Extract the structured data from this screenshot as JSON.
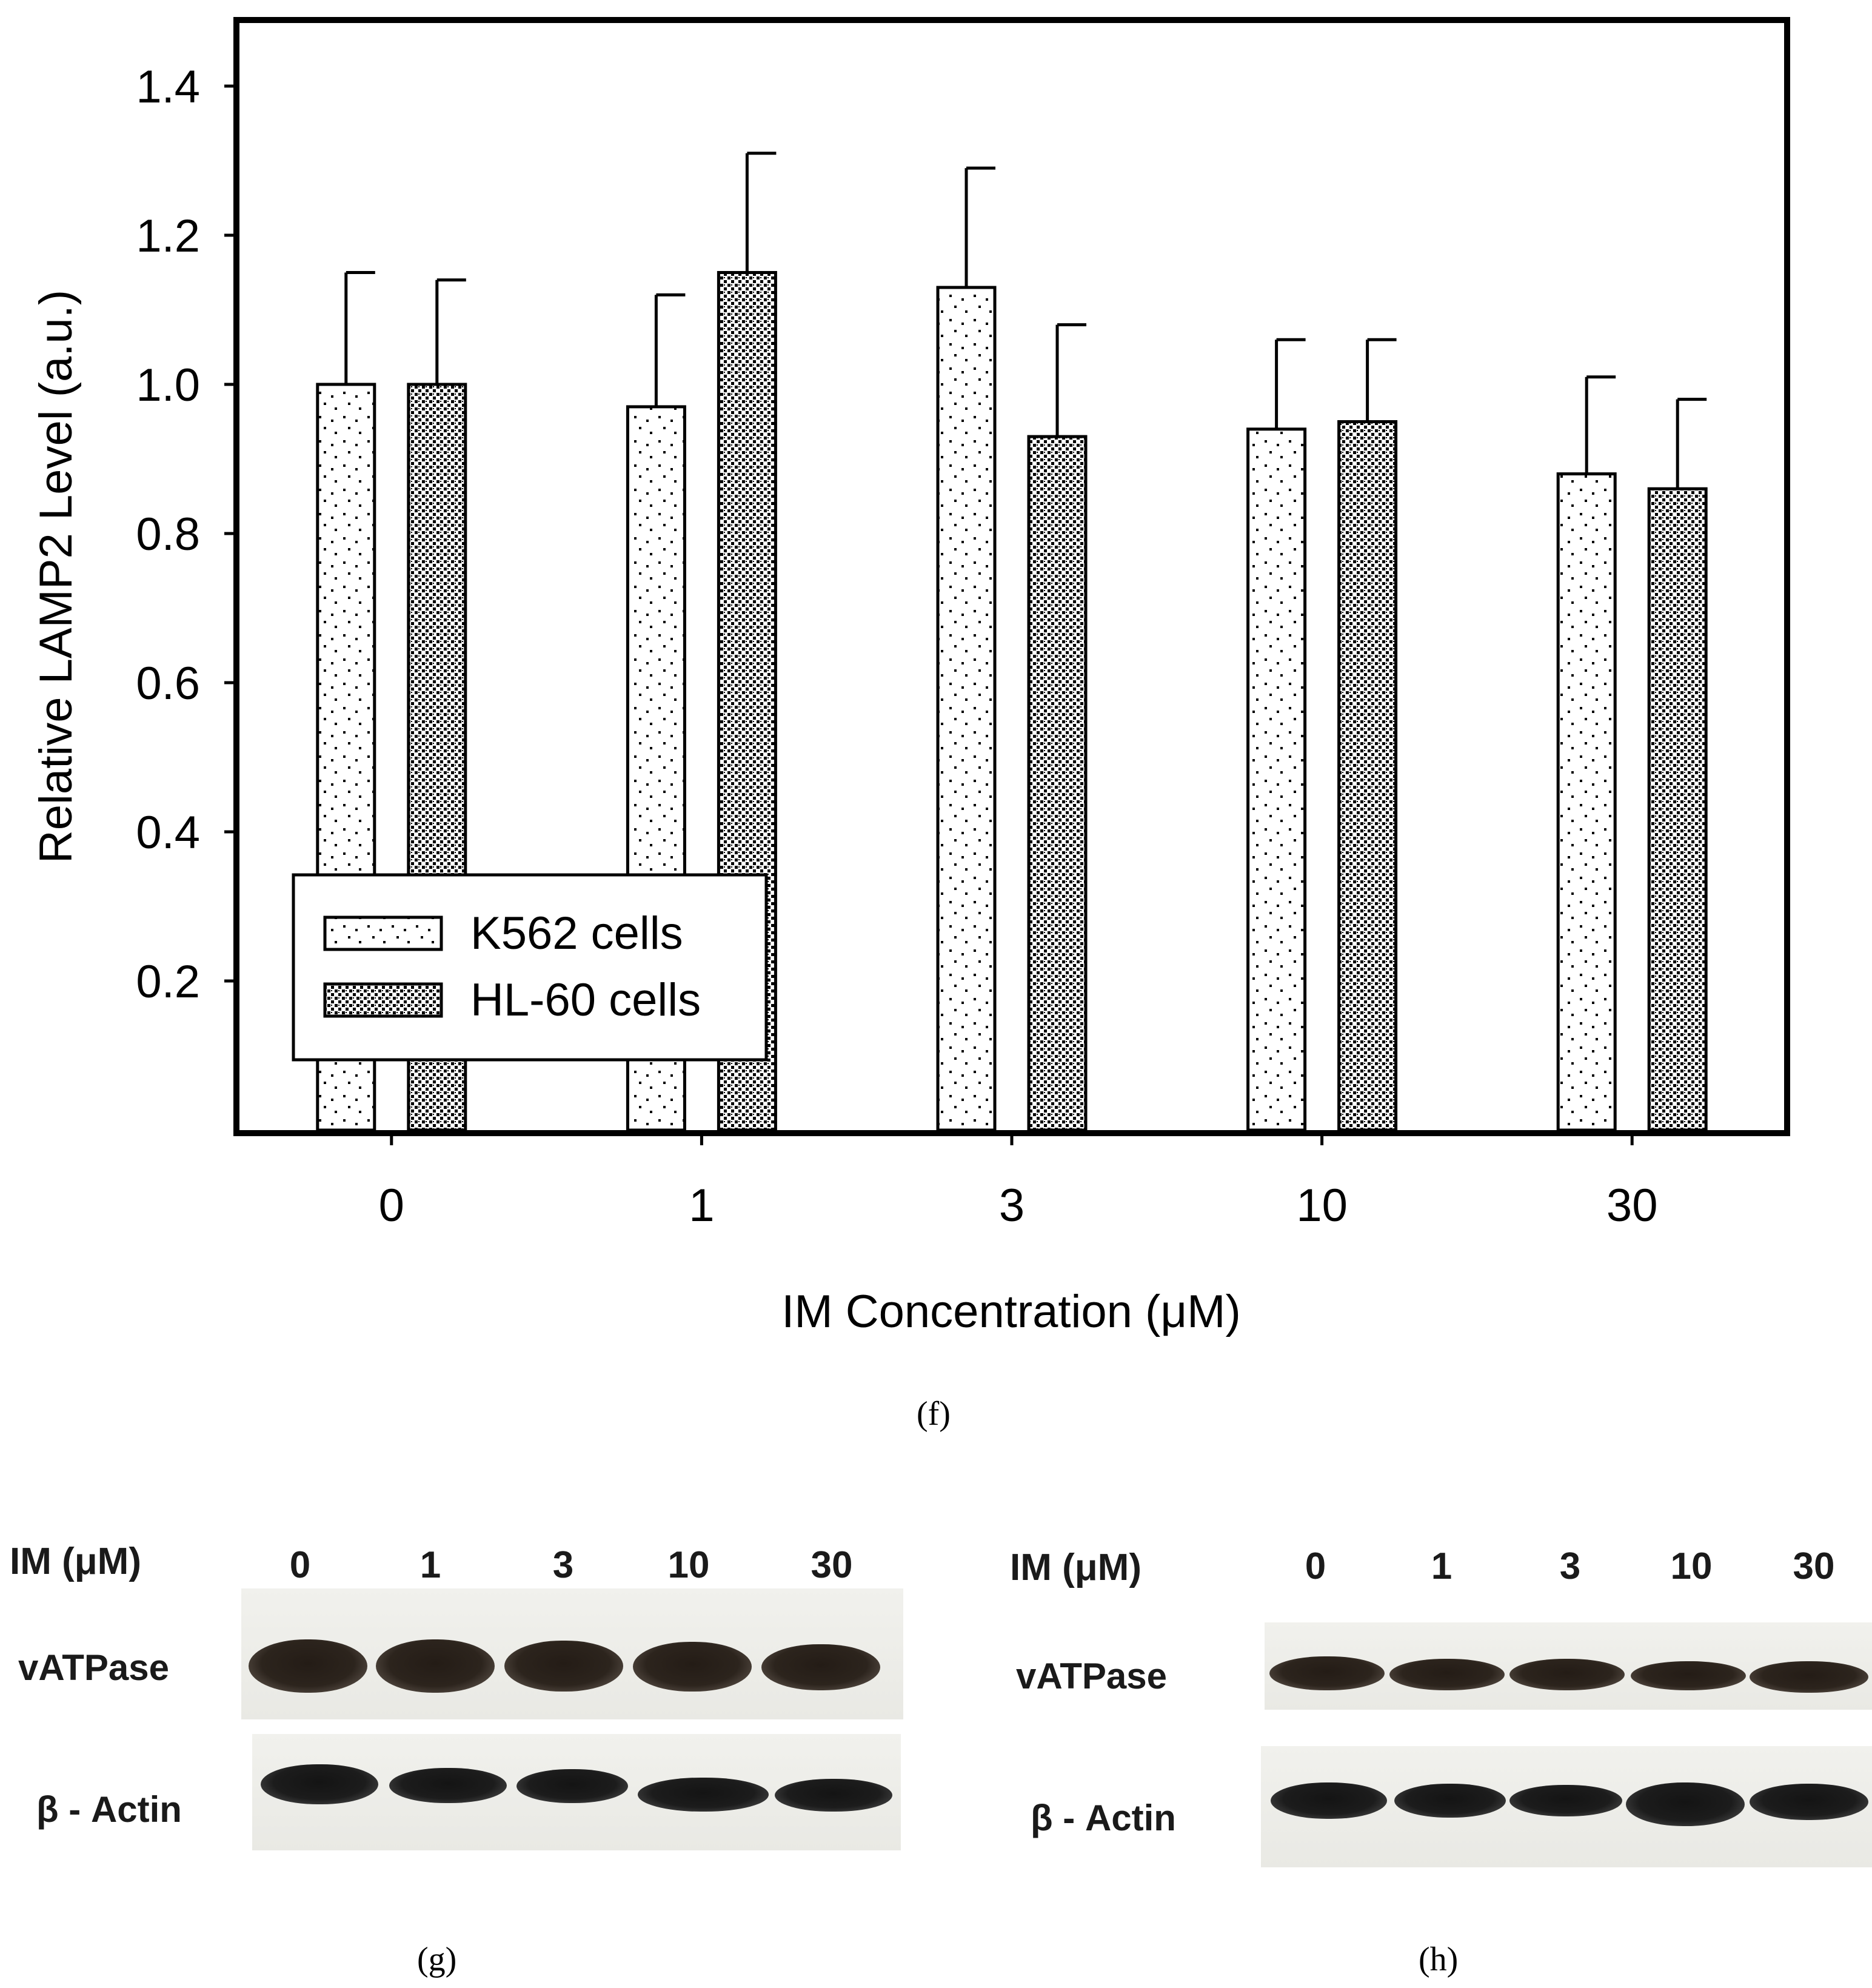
{
  "chart_data": {
    "type": "bar",
    "ylabel": "Relative LAMP2 Level (a.u.)",
    "xlabel": "IM Concentration (μM)",
    "ylim": [
      0,
      1.5
    ],
    "yticks": [
      0.2,
      0.4,
      0.6,
      0.8,
      1.0,
      1.2,
      1.4
    ],
    "categories": [
      "0",
      "1",
      "3",
      "10",
      "30"
    ],
    "series": [
      {
        "name": "K562 cells",
        "values": [
          1.0,
          0.97,
          1.13,
          0.94,
          0.88
        ],
        "errors": [
          0.15,
          0.15,
          0.16,
          0.12,
          0.13
        ]
      },
      {
        "name": "HL-60 cells",
        "values": [
          1.0,
          1.15,
          0.93,
          0.95,
          0.86
        ],
        "errors": [
          0.14,
          0.16,
          0.15,
          0.11,
          0.12
        ]
      }
    ],
    "legend_position": "bottom-left",
    "grid": false
  },
  "panels": {
    "f": "(f)",
    "g": "(g)",
    "h": "(h)"
  },
  "blot_g": {
    "title": "IM (μM)",
    "lanes": [
      "0",
      "1",
      "3",
      "10",
      "30"
    ],
    "row1": "vATPase",
    "row2": "β - Actin"
  },
  "blot_h": {
    "title": "IM (μM)",
    "lanes": [
      "0",
      "1",
      "3",
      "10",
      "30"
    ],
    "row1": "vATPase",
    "row2": "β - Actin"
  },
  "colors": {
    "frame": "#000000",
    "bar_fill": "#ffffff"
  }
}
